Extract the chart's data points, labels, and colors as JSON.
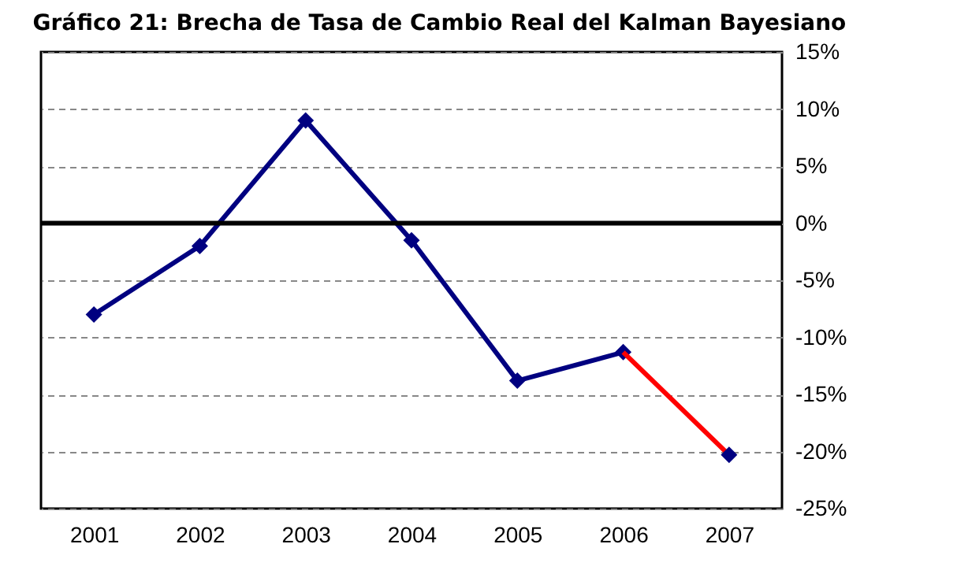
{
  "chart_data": {
    "type": "line",
    "title": "Gráfico 21: Brecha de Tasa de Cambio Real del Kalman Bayesiano",
    "categories": [
      "2001",
      "2002",
      "2003",
      "2004",
      "2005",
      "2006",
      "2007"
    ],
    "series": [
      {
        "color": "#000080",
        "marker": "diamond",
        "values": [
          -8,
          -2,
          9,
          -1.5,
          -13.8,
          -11.3,
          null
        ]
      },
      {
        "color": "#ff0000",
        "marker": "none",
        "values": [
          null,
          null,
          null,
          null,
          null,
          -11.3,
          -20.3
        ]
      },
      {
        "type": "scatter",
        "color": "#000080",
        "marker": "diamond",
        "values": [
          null,
          null,
          null,
          null,
          null,
          null,
          -20.3
        ]
      }
    ],
    "ylim": [
      -25,
      15
    ],
    "yticks": [
      {
        "value": -25,
        "label": "-25%"
      },
      {
        "value": -20,
        "label": "-20%"
      },
      {
        "value": -15,
        "label": "-15%"
      },
      {
        "value": -10,
        "label": "-10%"
      },
      {
        "value": -5,
        "label": "-5%"
      },
      {
        "value": 0,
        "label": "0%"
      },
      {
        "value": 5,
        "label": "5%"
      },
      {
        "value": 10,
        "label": "10%"
      },
      {
        "value": 15,
        "label": "15%"
      }
    ],
    "grid": "y",
    "ref_lines": [
      {
        "axis": "y",
        "value": 0,
        "color": "#000000"
      }
    ]
  }
}
